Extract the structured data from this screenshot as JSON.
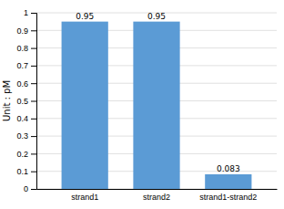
{
  "chart_data": {
    "type": "bar",
    "categories": [
      "strand1",
      "strand2",
      "strand1-strand2"
    ],
    "values": [
      0.95,
      0.95,
      0.083
    ],
    "color": "#5B9BD5",
    "ylabel": "Unit : pM",
    "ylim": [
      0,
      1.0
    ],
    "yticks": [
      0,
      0.1,
      0.2,
      0.3,
      0.4,
      0.5,
      0.6,
      0.7,
      0.8,
      0.9,
      1
    ],
    "grid": true,
    "data_labels": true
  }
}
